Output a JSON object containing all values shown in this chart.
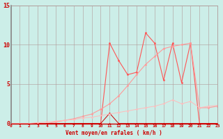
{
  "bg_color": "#cceee8",
  "grid_color": "#b09898",
  "xlabel": "Vent moyen/en rafales ( km/h )",
  "xlabel_color": "#cc0000",
  "tick_color": "#cc0000",
  "xmin": 0,
  "xmax": 23,
  "ymin": 0,
  "ymax": 15,
  "yticks": [
    0,
    5,
    10,
    15
  ],
  "xticks": [
    0,
    1,
    2,
    3,
    4,
    5,
    6,
    7,
    8,
    9,
    10,
    11,
    12,
    13,
    14,
    15,
    16,
    17,
    18,
    19,
    20,
    21,
    22,
    23
  ],
  "lines": [
    {
      "x": [
        0,
        1,
        2,
        3,
        4,
        5,
        6,
        7,
        8,
        9,
        10,
        11,
        12,
        13,
        14,
        15,
        16,
        17,
        18,
        19,
        20,
        21,
        22,
        23
      ],
      "y": [
        0,
        0,
        0,
        0,
        0,
        0,
        0,
        0,
        0,
        0,
        0,
        10.2,
        8.0,
        6.2,
        6.5,
        11.5,
        10.2,
        5.5,
        10.2,
        5.2,
        10.2,
        0,
        0,
        0
      ],
      "color": "#ff5555",
      "lw": 0.8,
      "ms": 2.0
    },
    {
      "x": [
        0,
        1,
        2,
        3,
        4,
        5,
        6,
        7,
        8,
        9,
        10,
        11,
        12,
        13,
        14,
        15,
        16,
        17,
        18,
        19,
        20,
        21,
        22,
        23
      ],
      "y": [
        0,
        0,
        0,
        0,
        0,
        0.2,
        0.4,
        0.6,
        0.9,
        1.2,
        1.8,
        2.5,
        3.5,
        4.8,
        6.2,
        7.5,
        8.5,
        9.5,
        9.8,
        10.0,
        10.2,
        2.0,
        2.0,
        2.2
      ],
      "color": "#ff9999",
      "lw": 0.8,
      "ms": 2.0
    },
    {
      "x": [
        0,
        1,
        2,
        3,
        4,
        5,
        6,
        7,
        8,
        9,
        10,
        11,
        12,
        13,
        14,
        15,
        16,
        17,
        18,
        19,
        20,
        21,
        22,
        23
      ],
      "y": [
        0,
        0,
        0,
        0,
        0,
        0,
        0,
        0,
        0,
        0,
        0,
        0,
        0,
        0,
        0,
        0,
        0,
        0,
        0,
        0,
        0,
        0,
        0,
        0
      ],
      "color": "#cc0000",
      "lw": 0.7,
      "ms": 1.8
    },
    {
      "x": [
        0,
        1,
        2,
        3,
        4,
        5,
        6,
        7,
        8,
        9,
        10,
        11,
        12,
        13,
        14,
        15,
        16,
        17,
        18,
        19,
        20,
        21,
        22,
        23
      ],
      "y": [
        0,
        0,
        0,
        0,
        0,
        0,
        0,
        0,
        0,
        0,
        0,
        1.3,
        0,
        0,
        0,
        0,
        0,
        0,
        0,
        0,
        0,
        0,
        0,
        0
      ],
      "color": "#cc0000",
      "lw": 0.7,
      "ms": 1.8
    },
    {
      "x": [
        0,
        1,
        2,
        3,
        4,
        5,
        6,
        7,
        8,
        9,
        10,
        11,
        12,
        13,
        14,
        15,
        16,
        17,
        18,
        19,
        20,
        21,
        22,
        23
      ],
      "y": [
        0,
        0,
        0,
        0.1,
        0.2,
        0.3,
        0.4,
        0.5,
        0.7,
        0.8,
        1.0,
        1.2,
        1.4,
        1.6,
        1.8,
        2.0,
        2.2,
        2.5,
        3.0,
        2.5,
        2.8,
        2.0,
        2.2,
        2.3
      ],
      "color": "#ffbbbb",
      "lw": 0.7,
      "ms": 1.8
    }
  ]
}
